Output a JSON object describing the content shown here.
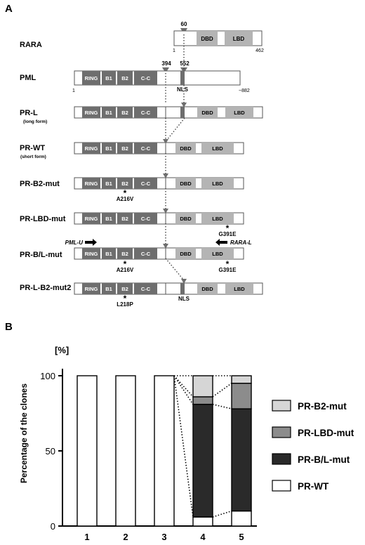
{
  "panel_a": {
    "label": "A",
    "rara": {
      "name": "RARA",
      "start": "1",
      "end": "462",
      "break_pos": "60"
    },
    "pml": {
      "name": "PML",
      "start": "1",
      "end": "~882",
      "break_1": "394",
      "break_2": "552",
      "nls": "NLS"
    },
    "domains": {
      "ring": "RING",
      "b1": "B1",
      "b2": "B2",
      "cc": "C-C",
      "dbd": "DBD",
      "lbd": "LBD"
    },
    "constructs": [
      {
        "id": "prl",
        "name": "PR-L",
        "subtitle": "(long form)"
      },
      {
        "id": "prwt",
        "name": "PR-WT",
        "subtitle": "(short form)"
      },
      {
        "id": "prb2",
        "name": "PR-B2-mut",
        "subtitle": ""
      },
      {
        "id": "prlbd",
        "name": "PR-LBD-mut",
        "subtitle": ""
      },
      {
        "id": "prbl",
        "name": "PR-B/L-mut",
        "subtitle": ""
      },
      {
        "id": "prlb2",
        "name": "PR-L-B2-mut2",
        "subtitle": ""
      }
    ],
    "mutations": {
      "a216v": "A216V",
      "g391e": "G391E",
      "l218p": "L218P",
      "star": "*"
    },
    "primers": {
      "forward": "PML-U",
      "reverse": "RARA-L"
    },
    "nls_label": "NLS"
  },
  "panel_b": {
    "label": "B",
    "unit": "[%]",
    "legend_items": [
      "PR-B2-mut",
      "PR-LBD-mut",
      "PR-B/L-mut",
      "PR-WT"
    ]
  },
  "colors": {
    "dark_domain": "#6e6e6e",
    "light_domain": "#b4b4b4",
    "pr_b2_mut": "#d6d6d6",
    "pr_lbd_mut": "#8c8c8c",
    "pr_bl_mut": "#2a2a2a",
    "pr_wt": "#ffffff"
  },
  "chart_data": {
    "type": "bar",
    "stacked": true,
    "categories": [
      "1",
      "2",
      "3",
      "4",
      "5"
    ],
    "xlabel": "",
    "ylabel": "Percentage of the clones",
    "ylim": [
      0,
      100
    ],
    "yticks": [
      0,
      50,
      100
    ],
    "legend_placement": "right",
    "grid": false,
    "series": [
      {
        "name": "PR-WT",
        "values": [
          100,
          100,
          100,
          6,
          10
        ]
      },
      {
        "name": "PR-B/L-mut",
        "values": [
          0,
          0,
          0,
          75,
          68
        ]
      },
      {
        "name": "PR-LBD-mut",
        "values": [
          0,
          0,
          0,
          5,
          17
        ]
      },
      {
        "name": "PR-B2-mut",
        "values": [
          0,
          0,
          0,
          14,
          5
        ]
      }
    ]
  }
}
